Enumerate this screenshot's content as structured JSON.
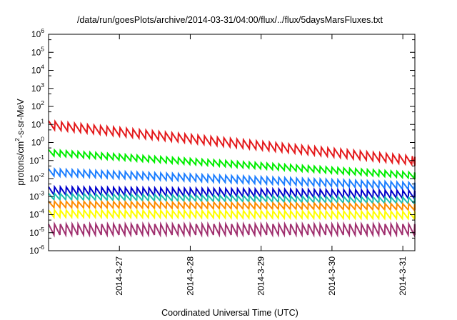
{
  "chart_data": {
    "type": "line",
    "title": "/data/run/goesPlots/archive/2014-03-31/04:00/flux/../flux/5daysMarsFluxes.txt",
    "xlabel": "Coordinated Universal Time (UTC)",
    "ylabel_parts": [
      "protons/cm",
      "2",
      "-s-sr-MeV"
    ],
    "yscale": "log",
    "ylim": [
      1e-06,
      1000000.0
    ],
    "y_ticks": [
      {
        "base": "10",
        "exp": "-6",
        "value": 1e-06
      },
      {
        "base": "10",
        "exp": "-5",
        "value": 1e-05
      },
      {
        "base": "10",
        "exp": "-4",
        "value": 0.0001
      },
      {
        "base": "10",
        "exp": "-3",
        "value": 0.001
      },
      {
        "base": "10",
        "exp": "-2",
        "value": 0.01
      },
      {
        "base": "10",
        "exp": "-1",
        "value": 0.1
      },
      {
        "base": "10",
        "exp": "0",
        "value": 1
      },
      {
        "base": "10",
        "exp": "1",
        "value": 10
      },
      {
        "base": "10",
        "exp": "2",
        "value": 100
      },
      {
        "base": "10",
        "exp": "3",
        "value": 1000
      },
      {
        "base": "10",
        "exp": "4",
        "value": 10000
      },
      {
        "base": "10",
        "exp": "5",
        "value": 100000
      },
      {
        "base": "10",
        "exp": "6",
        "value": 1000000
      }
    ],
    "x_ticks": [
      {
        "label": "2014-3-27",
        "day": 27
      },
      {
        "label": "2014-3-28",
        "day": 28
      },
      {
        "label": "2014-3-29",
        "day": 29
      },
      {
        "label": "2014-3-30",
        "day": 30
      },
      {
        "label": "2014-3-31",
        "day": 31
      }
    ],
    "xlim_days": [
      26.0,
      31.17
    ],
    "grid": false,
    "legend": "none",
    "series": [
      {
        "color": "#e41a1c",
        "decay": 0.5,
        "start": 16,
        "end": 0.17,
        "jumps": [
          [
            26.95,
            3.2
          ]
        ],
        "tooth_hours": 2.2
      },
      {
        "color": "#00ee00",
        "decay": 0.35,
        "start": 0.4,
        "end": 0.022,
        "jumps": [
          [
            26.95,
            2.0
          ],
          [
            29.95,
            2.3
          ]
        ],
        "tooth_hours": 2.0
      },
      {
        "color": "#1e7fff",
        "decay": 0.4,
        "start": 0.035,
        "end": 0.006,
        "jumps": [
          [
            29.95,
            2.0
          ]
        ],
        "tooth_hours": 2.0
      },
      {
        "color": "#0000cc",
        "decay": 0.45,
        "start": 0.0035,
        "end": 0.0022,
        "jumps": [
          [
            29.95,
            1.6
          ]
        ],
        "tooth_hours": 2.0
      },
      {
        "color": "#20c0b0",
        "decay": 0.35,
        "start": 0.0015,
        "end": 0.0009,
        "jumps": [],
        "tooth_hours": 2.0
      },
      {
        "color": "#ff8c00",
        "decay": 0.35,
        "start": 0.00055,
        "end": 0.0004,
        "jumps": [],
        "tooth_hours": 2.0
      },
      {
        "color": "#ffff00",
        "decay": 0.4,
        "start": 0.00018,
        "end": 0.00015,
        "jumps": [],
        "tooth_hours": 2.0
      },
      {
        "color": "#a0306f",
        "decay": 0.6,
        "start": 3e-05,
        "end": 3e-05,
        "jumps": [],
        "tooth_hours": 2.0
      }
    ]
  }
}
